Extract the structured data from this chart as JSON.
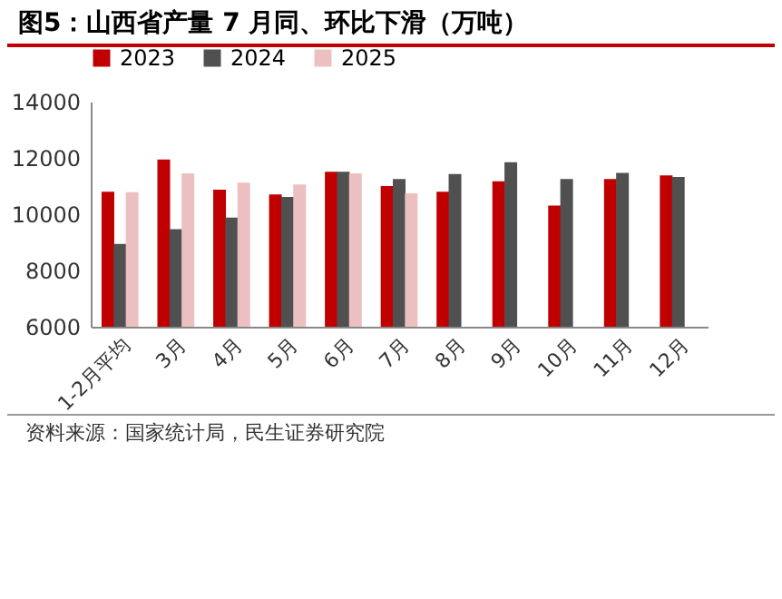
{
  "chart_data": {
    "type": "bar",
    "title": "图5：山西省产量 7 月同、环比下滑（万吨）",
    "categories": [
      "1-2月平均",
      "3月",
      "4月",
      "5月",
      "6月",
      "7月",
      "8月",
      "9月",
      "10月",
      "11月",
      "12月"
    ],
    "series": [
      {
        "name": "2023",
        "color": "#c00000",
        "values": [
          10800,
          11940,
          10870,
          10700,
          11510,
          11000,
          10800,
          11170,
          10310,
          11250,
          11380
        ]
      },
      {
        "name": "2024",
        "color": "#505050",
        "values": [
          8940,
          9470,
          9880,
          10610,
          11510,
          11250,
          11430,
          11850,
          11250,
          11470,
          11320
        ]
      },
      {
        "name": "2025",
        "color": "#ecc0c0",
        "values": [
          10780,
          11450,
          11120,
          11060,
          11450,
          10740,
          null,
          null,
          null,
          null,
          null
        ]
      }
    ],
    "ylim": [
      6000,
      14000
    ],
    "yticks": [
      6000,
      8000,
      10000,
      12000,
      14000
    ],
    "grid": false,
    "legend": "top",
    "annotations": [
      "资料来源：国家统计局，民生证券研究院"
    ]
  }
}
